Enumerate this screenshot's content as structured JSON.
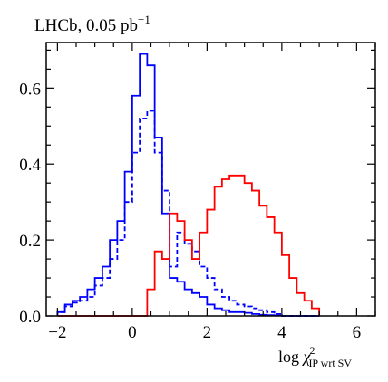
{
  "chart_data": {
    "type": "line",
    "step": true,
    "title": "LHCb, 0.05 pb",
    "title_superscript": "−1",
    "xlabel": {
      "prefix": "log ",
      "symbol": "χ",
      "superscript": "2",
      "subscript": "IP wrt SV"
    },
    "ylabel": "",
    "xlim": [
      -2.3,
      6.5
    ],
    "ylim": [
      0,
      0.72
    ],
    "xticks": [
      -2,
      0,
      2,
      4,
      6
    ],
    "xtick_labels": [
      "−2",
      "0",
      "2",
      "4",
      "6"
    ],
    "yticks": [
      0.0,
      0.2,
      0.4,
      0.6
    ],
    "ytick_labels": [
      "0.0",
      "0.2",
      "0.4",
      "0.6"
    ],
    "xminor_step": 0.5,
    "yminor_step": 0.05,
    "grid": false,
    "legend": false,
    "bin_edges": [
      -2.0,
      -1.8,
      -1.6,
      -1.4,
      -1.2,
      -1.0,
      -0.8,
      -0.6,
      -0.4,
      -0.2,
      0.0,
      0.2,
      0.4,
      0.6,
      0.8,
      1.0,
      1.2,
      1.4,
      1.6,
      1.8,
      2.0,
      2.2,
      2.4,
      2.6,
      2.8,
      3.0,
      3.2,
      3.4,
      3.6,
      3.8,
      4.0,
      4.2,
      4.4,
      4.6,
      4.8,
      5.0
    ],
    "series": [
      {
        "color": "#0000ff",
        "linestyle": "solid",
        "values": [
          0.01,
          0.03,
          0.04,
          0.05,
          0.07,
          0.1,
          0.13,
          0.2,
          0.25,
          0.38,
          0.58,
          0.69,
          0.66,
          0.47,
          0.27,
          0.1,
          0.09,
          0.07,
          0.06,
          0.05,
          0.03,
          0.02,
          0.015,
          0.01,
          0.01,
          0.008,
          0.005,
          0.003,
          0.002,
          0.001,
          0,
          0,
          0,
          0,
          0
        ]
      },
      {
        "color": "#0000ff",
        "linestyle": "dashed",
        "values": [
          0.01,
          0.025,
          0.035,
          0.04,
          0.05,
          0.08,
          0.1,
          0.15,
          0.2,
          0.3,
          0.43,
          0.52,
          0.54,
          0.43,
          0.33,
          0.13,
          0.22,
          0.19,
          0.17,
          0.13,
          0.1,
          0.07,
          0.05,
          0.04,
          0.03,
          0.025,
          0.02,
          0.015,
          0.01,
          0.005,
          0,
          0,
          0,
          0,
          0
        ]
      },
      {
        "color": "#ff0000",
        "linestyle": "solid",
        "values": [
          0,
          0,
          0,
          0,
          0,
          0,
          0,
          0,
          0,
          0,
          0,
          0,
          0.07,
          0.17,
          0.15,
          0.27,
          0.25,
          0.2,
          0.15,
          0.22,
          0.28,
          0.34,
          0.36,
          0.37,
          0.37,
          0.35,
          0.33,
          0.29,
          0.26,
          0.22,
          0.16,
          0.1,
          0.06,
          0.04,
          0.02
        ]
      }
    ]
  }
}
